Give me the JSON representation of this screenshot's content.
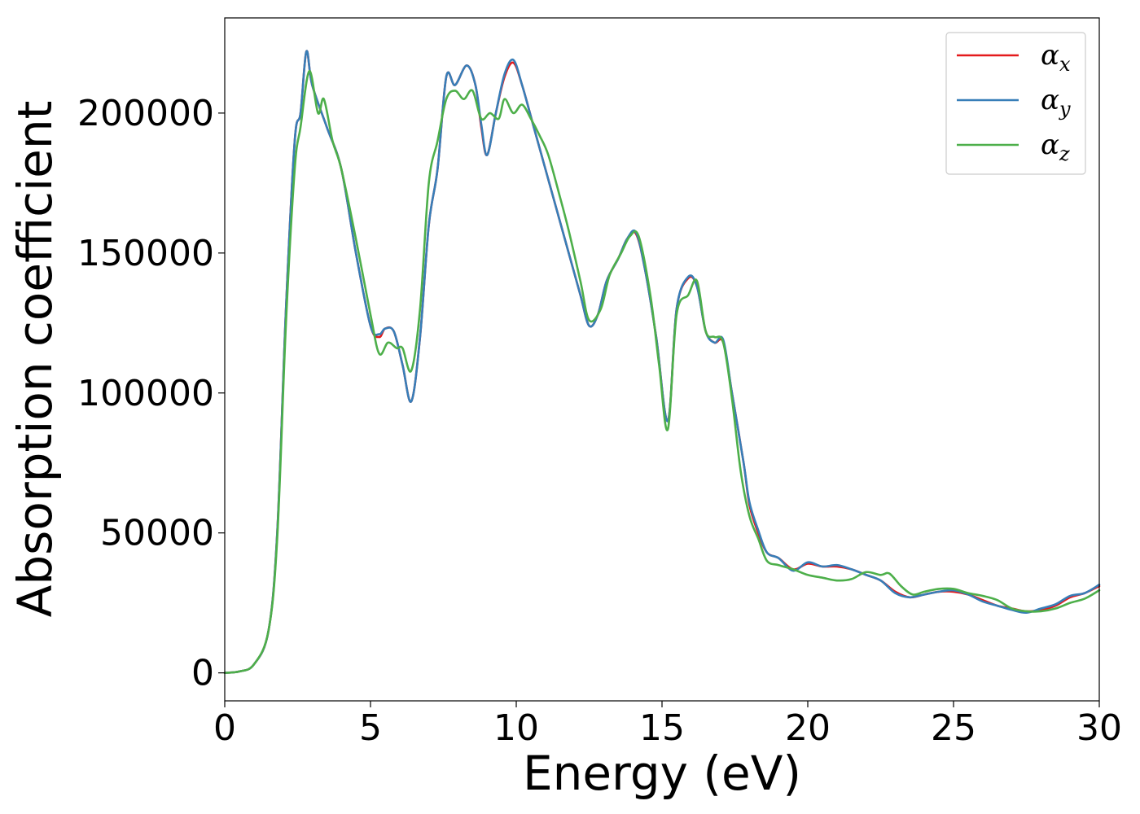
{
  "chart_data": {
    "type": "line",
    "title": "",
    "xlabel": "Energy (eV)",
    "ylabel": "Absorption coefficient",
    "xlim": [
      0,
      30
    ],
    "ylim": [
      -10000,
      234000
    ],
    "xticks": [
      0,
      5,
      10,
      15,
      20,
      25,
      30
    ],
    "xtick_labels": [
      "0",
      "5",
      "10",
      "15",
      "20",
      "25",
      "30"
    ],
    "yticks": [
      0,
      50000,
      100000,
      150000,
      200000
    ],
    "ytick_labels": [
      "0",
      "50000",
      "100000",
      "150000",
      "200000"
    ],
    "grid": false,
    "legend_position": "top-right",
    "series": [
      {
        "name": "α_x",
        "legend_base": "α",
        "legend_sub": "x",
        "color": "#e41a1c",
        "points": [
          [
            0,
            0
          ],
          [
            0.5,
            500
          ],
          [
            1.0,
            3000
          ],
          [
            1.5,
            15000
          ],
          [
            1.8,
            50000
          ],
          [
            2.1,
            130000
          ],
          [
            2.4,
            190000
          ],
          [
            2.6,
            200000
          ],
          [
            2.8,
            222000
          ],
          [
            3.0,
            210000
          ],
          [
            3.5,
            195000
          ],
          [
            4.0,
            180000
          ],
          [
            4.5,
            150000
          ],
          [
            5.0,
            124000
          ],
          [
            5.3,
            120000
          ],
          [
            5.5,
            123000
          ],
          [
            5.8,
            122000
          ],
          [
            6.1,
            110000
          ],
          [
            6.4,
            97000
          ],
          [
            6.7,
            120000
          ],
          [
            7.0,
            160000
          ],
          [
            7.3,
            180000
          ],
          [
            7.6,
            213000
          ],
          [
            7.9,
            210000
          ],
          [
            8.3,
            217000
          ],
          [
            8.6,
            210000
          ],
          [
            8.8,
            195000
          ],
          [
            9.0,
            185000
          ],
          [
            9.3,
            200000
          ],
          [
            9.6,
            213000
          ],
          [
            9.9,
            218000
          ],
          [
            10.2,
            210000
          ],
          [
            10.6,
            195000
          ],
          [
            11.0,
            180000
          ],
          [
            11.4,
            165000
          ],
          [
            11.8,
            150000
          ],
          [
            12.2,
            135000
          ],
          [
            12.5,
            124000
          ],
          [
            12.8,
            128000
          ],
          [
            13.1,
            140000
          ],
          [
            13.5,
            148000
          ],
          [
            13.8,
            155000
          ],
          [
            14.1,
            157000
          ],
          [
            14.4,
            145000
          ],
          [
            14.8,
            120000
          ],
          [
            15.2,
            90000
          ],
          [
            15.5,
            130000
          ],
          [
            15.9,
            141000
          ],
          [
            16.2,
            138000
          ],
          [
            16.5,
            122000
          ],
          [
            16.8,
            118000
          ],
          [
            17.1,
            118000
          ],
          [
            17.4,
            100000
          ],
          [
            17.8,
            75000
          ],
          [
            18.0,
            60000
          ],
          [
            18.3,
            50000
          ],
          [
            18.6,
            43000
          ],
          [
            19.0,
            41000
          ],
          [
            19.5,
            37000
          ],
          [
            20.0,
            39000
          ],
          [
            20.5,
            38000
          ],
          [
            21.0,
            38000
          ],
          [
            21.5,
            37000
          ],
          [
            22.0,
            35000
          ],
          [
            22.5,
            33000
          ],
          [
            23.0,
            29000
          ],
          [
            23.5,
            27000
          ],
          [
            24.0,
            28000
          ],
          [
            24.5,
            29000
          ],
          [
            25.0,
            29000
          ],
          [
            25.5,
            28000
          ],
          [
            26.0,
            26000
          ],
          [
            26.5,
            24000
          ],
          [
            27.0,
            23000
          ],
          [
            27.5,
            22000
          ],
          [
            28.0,
            22500
          ],
          [
            28.5,
            24000
          ],
          [
            29.0,
            27000
          ],
          [
            29.5,
            28500
          ],
          [
            30.0,
            31000
          ]
        ]
      },
      {
        "name": "α_y",
        "legend_base": "α",
        "legend_sub": "y",
        "color": "#377eb8",
        "points": [
          [
            0,
            0
          ],
          [
            0.5,
            500
          ],
          [
            1.0,
            3000
          ],
          [
            1.5,
            15000
          ],
          [
            1.8,
            50000
          ],
          [
            2.1,
            130000
          ],
          [
            2.4,
            190000
          ],
          [
            2.6,
            200000
          ],
          [
            2.8,
            222000
          ],
          [
            3.0,
            210000
          ],
          [
            3.5,
            195000
          ],
          [
            4.0,
            180000
          ],
          [
            4.5,
            150000
          ],
          [
            5.0,
            124000
          ],
          [
            5.3,
            121000
          ],
          [
            5.5,
            123000
          ],
          [
            5.8,
            122000
          ],
          [
            6.1,
            110000
          ],
          [
            6.4,
            97000
          ],
          [
            6.7,
            120000
          ],
          [
            7.0,
            160000
          ],
          [
            7.3,
            180000
          ],
          [
            7.6,
            213000
          ],
          [
            7.9,
            210000
          ],
          [
            8.3,
            217000
          ],
          [
            8.6,
            210000
          ],
          [
            8.8,
            196000
          ],
          [
            9.0,
            185000
          ],
          [
            9.3,
            200000
          ],
          [
            9.6,
            214000
          ],
          [
            9.9,
            219000
          ],
          [
            10.2,
            210000
          ],
          [
            10.6,
            195000
          ],
          [
            11.0,
            180000
          ],
          [
            11.4,
            165000
          ],
          [
            11.8,
            150000
          ],
          [
            12.2,
            135000
          ],
          [
            12.5,
            124000
          ],
          [
            12.8,
            128000
          ],
          [
            13.1,
            140000
          ],
          [
            13.5,
            148000
          ],
          [
            13.8,
            155000
          ],
          [
            14.1,
            157500
          ],
          [
            14.4,
            145000
          ],
          [
            14.8,
            120000
          ],
          [
            15.2,
            90000
          ],
          [
            15.5,
            130000
          ],
          [
            15.9,
            141500
          ],
          [
            16.2,
            138000
          ],
          [
            16.5,
            122000
          ],
          [
            16.8,
            118000
          ],
          [
            17.1,
            119000
          ],
          [
            17.4,
            100000
          ],
          [
            17.8,
            75000
          ],
          [
            18.0,
            61000
          ],
          [
            18.3,
            51000
          ],
          [
            18.6,
            43000
          ],
          [
            19.0,
            41000
          ],
          [
            19.5,
            36500
          ],
          [
            20.0,
            39500
          ],
          [
            20.5,
            38000
          ],
          [
            21.0,
            38500
          ],
          [
            21.5,
            37000
          ],
          [
            22.0,
            35000
          ],
          [
            22.5,
            33000
          ],
          [
            23.0,
            28500
          ],
          [
            23.5,
            27000
          ],
          [
            24.0,
            28000
          ],
          [
            24.5,
            29000
          ],
          [
            25.0,
            29500
          ],
          [
            25.5,
            28000
          ],
          [
            26.0,
            25500
          ],
          [
            26.5,
            24000
          ],
          [
            27.0,
            22500
          ],
          [
            27.5,
            21500
          ],
          [
            28.0,
            23000
          ],
          [
            28.5,
            24500
          ],
          [
            29.0,
            27500
          ],
          [
            29.5,
            28500
          ],
          [
            30.0,
            31500
          ]
        ]
      },
      {
        "name": "α_z",
        "legend_base": "α",
        "legend_sub": "z",
        "color": "#4daf4a",
        "points": [
          [
            0,
            0
          ],
          [
            0.5,
            500
          ],
          [
            1.0,
            3000
          ],
          [
            1.5,
            15000
          ],
          [
            1.8,
            48000
          ],
          [
            2.1,
            125000
          ],
          [
            2.4,
            180000
          ],
          [
            2.6,
            195000
          ],
          [
            2.9,
            215000
          ],
          [
            3.2,
            200000
          ],
          [
            3.4,
            205000
          ],
          [
            3.7,
            190000
          ],
          [
            4.0,
            180000
          ],
          [
            4.5,
            155000
          ],
          [
            5.0,
            128000
          ],
          [
            5.3,
            114000
          ],
          [
            5.6,
            118000
          ],
          [
            5.9,
            116000
          ],
          [
            6.1,
            116000
          ],
          [
            6.4,
            108000
          ],
          [
            6.7,
            130000
          ],
          [
            7.0,
            175000
          ],
          [
            7.3,
            190000
          ],
          [
            7.6,
            205000
          ],
          [
            7.9,
            208000
          ],
          [
            8.2,
            205000
          ],
          [
            8.5,
            208000
          ],
          [
            8.8,
            198000
          ],
          [
            9.1,
            200000
          ],
          [
            9.4,
            198000
          ],
          [
            9.6,
            205000
          ],
          [
            9.9,
            200000
          ],
          [
            10.2,
            203000
          ],
          [
            10.5,
            198000
          ],
          [
            10.8,
            192000
          ],
          [
            11.1,
            185000
          ],
          [
            11.5,
            170000
          ],
          [
            11.8,
            158000
          ],
          [
            12.2,
            140000
          ],
          [
            12.5,
            126000
          ],
          [
            12.9,
            130000
          ],
          [
            13.2,
            142000
          ],
          [
            13.6,
            150000
          ],
          [
            13.9,
            156000
          ],
          [
            14.2,
            156000
          ],
          [
            14.6,
            135000
          ],
          [
            14.9,
            110000
          ],
          [
            15.2,
            87000
          ],
          [
            15.5,
            128000
          ],
          [
            15.9,
            135000
          ],
          [
            16.2,
            140000
          ],
          [
            16.5,
            122000
          ],
          [
            16.8,
            120000
          ],
          [
            17.1,
            118000
          ],
          [
            17.4,
            98000
          ],
          [
            17.7,
            72000
          ],
          [
            18.0,
            56000
          ],
          [
            18.3,
            48000
          ],
          [
            18.6,
            40000
          ],
          [
            19.0,
            38500
          ],
          [
            19.5,
            37000
          ],
          [
            20.0,
            35000
          ],
          [
            20.5,
            34000
          ],
          [
            21.0,
            33000
          ],
          [
            21.5,
            33500
          ],
          [
            22.0,
            36000
          ],
          [
            22.5,
            35000
          ],
          [
            22.8,
            35500
          ],
          [
            23.2,
            31000
          ],
          [
            23.6,
            28000
          ],
          [
            24.0,
            29000
          ],
          [
            24.5,
            30000
          ],
          [
            25.0,
            30000
          ],
          [
            25.5,
            28500
          ],
          [
            26.0,
            27500
          ],
          [
            26.5,
            26000
          ],
          [
            27.0,
            23000
          ],
          [
            27.5,
            22000
          ],
          [
            28.0,
            22000
          ],
          [
            28.5,
            23000
          ],
          [
            29.0,
            25000
          ],
          [
            29.5,
            26500
          ],
          [
            30.0,
            29500
          ]
        ]
      }
    ]
  }
}
